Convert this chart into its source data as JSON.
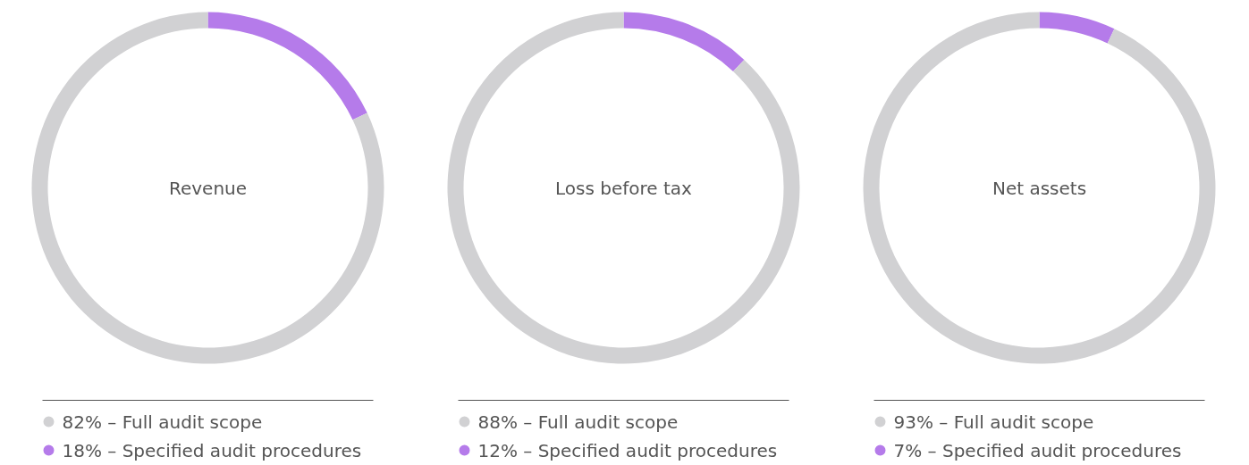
{
  "chart_data": [
    {
      "type": "donut",
      "title": "Revenue",
      "categories": [
        "Full audit scope",
        "Specified audit procedures"
      ],
      "values": [
        82,
        18
      ],
      "colors": [
        "#d1d1d3",
        "#b57bea"
      ],
      "value_labels": [
        "82%",
        "18%"
      ],
      "legend": "bottom"
    },
    {
      "type": "donut",
      "title": "Loss before tax",
      "categories": [
        "Full audit scope",
        "Specified audit procedures"
      ],
      "values": [
        88,
        12
      ],
      "colors": [
        "#d1d1d3",
        "#b57bea"
      ],
      "value_labels": [
        "88%",
        "12%"
      ],
      "legend": "bottom"
    },
    {
      "type": "donut",
      "title": "Net assets",
      "categories": [
        "Full audit scope",
        "Specified audit procedures"
      ],
      "values": [
        93,
        7
      ],
      "colors": [
        "#d1d1d3",
        "#b57bea"
      ],
      "value_labels": [
        "93%",
        "7%"
      ],
      "legend": "bottom"
    }
  ]
}
